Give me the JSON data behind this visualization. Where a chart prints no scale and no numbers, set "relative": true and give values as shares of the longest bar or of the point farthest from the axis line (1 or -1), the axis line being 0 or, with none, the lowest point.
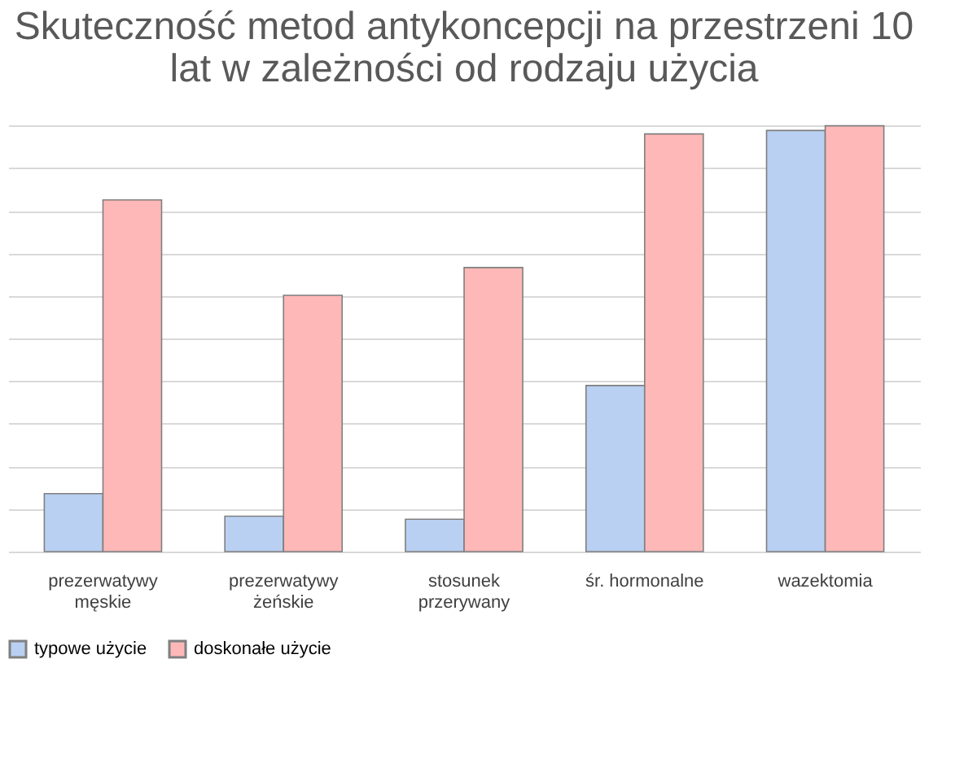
{
  "chart_data": {
    "type": "bar",
    "title": "Skuteczność metod antykoncepcji na przestrzeni 10 lat  w zależności od rodzaju użycia",
    "categories": [
      "prezerwatywy męskie",
      "prezerwatywy żeńskie",
      "stosunek przerywany",
      "śr. hormonalne",
      "wazektomia"
    ],
    "relative": true,
    "grid": "y",
    "legend": "bottom",
    "series": [
      {
        "name": "typowe użycie",
        "color": "#b9d0f2",
        "values": [
          0.136,
          0.083,
          0.076,
          0.39,
          0.989
        ]
      },
      {
        "name": "doskonałe użycie",
        "color": "#ffb8b8",
        "values": [
          0.826,
          0.602,
          0.667,
          0.981,
          1
        ]
      }
    ]
  }
}
